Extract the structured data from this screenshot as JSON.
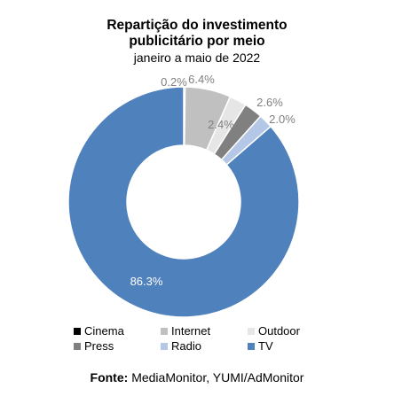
{
  "chart_data": {
    "type": "pie",
    "title_lines": [
      "Repartição do investimento",
      "publicitário por meio"
    ],
    "subtitle": "janeiro a maio de 2022",
    "donut": true,
    "legend_position": "bottom",
    "categories": [
      "Cinema",
      "Internet",
      "Outdoor",
      "Press",
      "Radio",
      "TV"
    ],
    "values": [
      0.2,
      6.4,
      2.4,
      2.6,
      2.0,
      86.3
    ],
    "data_labels": [
      "0.2%",
      "6.4%",
      "2.4%",
      "2.6%",
      "2.0%",
      "86.3%"
    ],
    "colors": [
      "#000000",
      "#c0c0c0",
      "#e6e6e6",
      "#808080",
      "#b4c7e7",
      "#4f81bd"
    ]
  },
  "source": {
    "label": "Fonte:",
    "text": "MediaMonitor, YUMI/AdMonitor"
  }
}
